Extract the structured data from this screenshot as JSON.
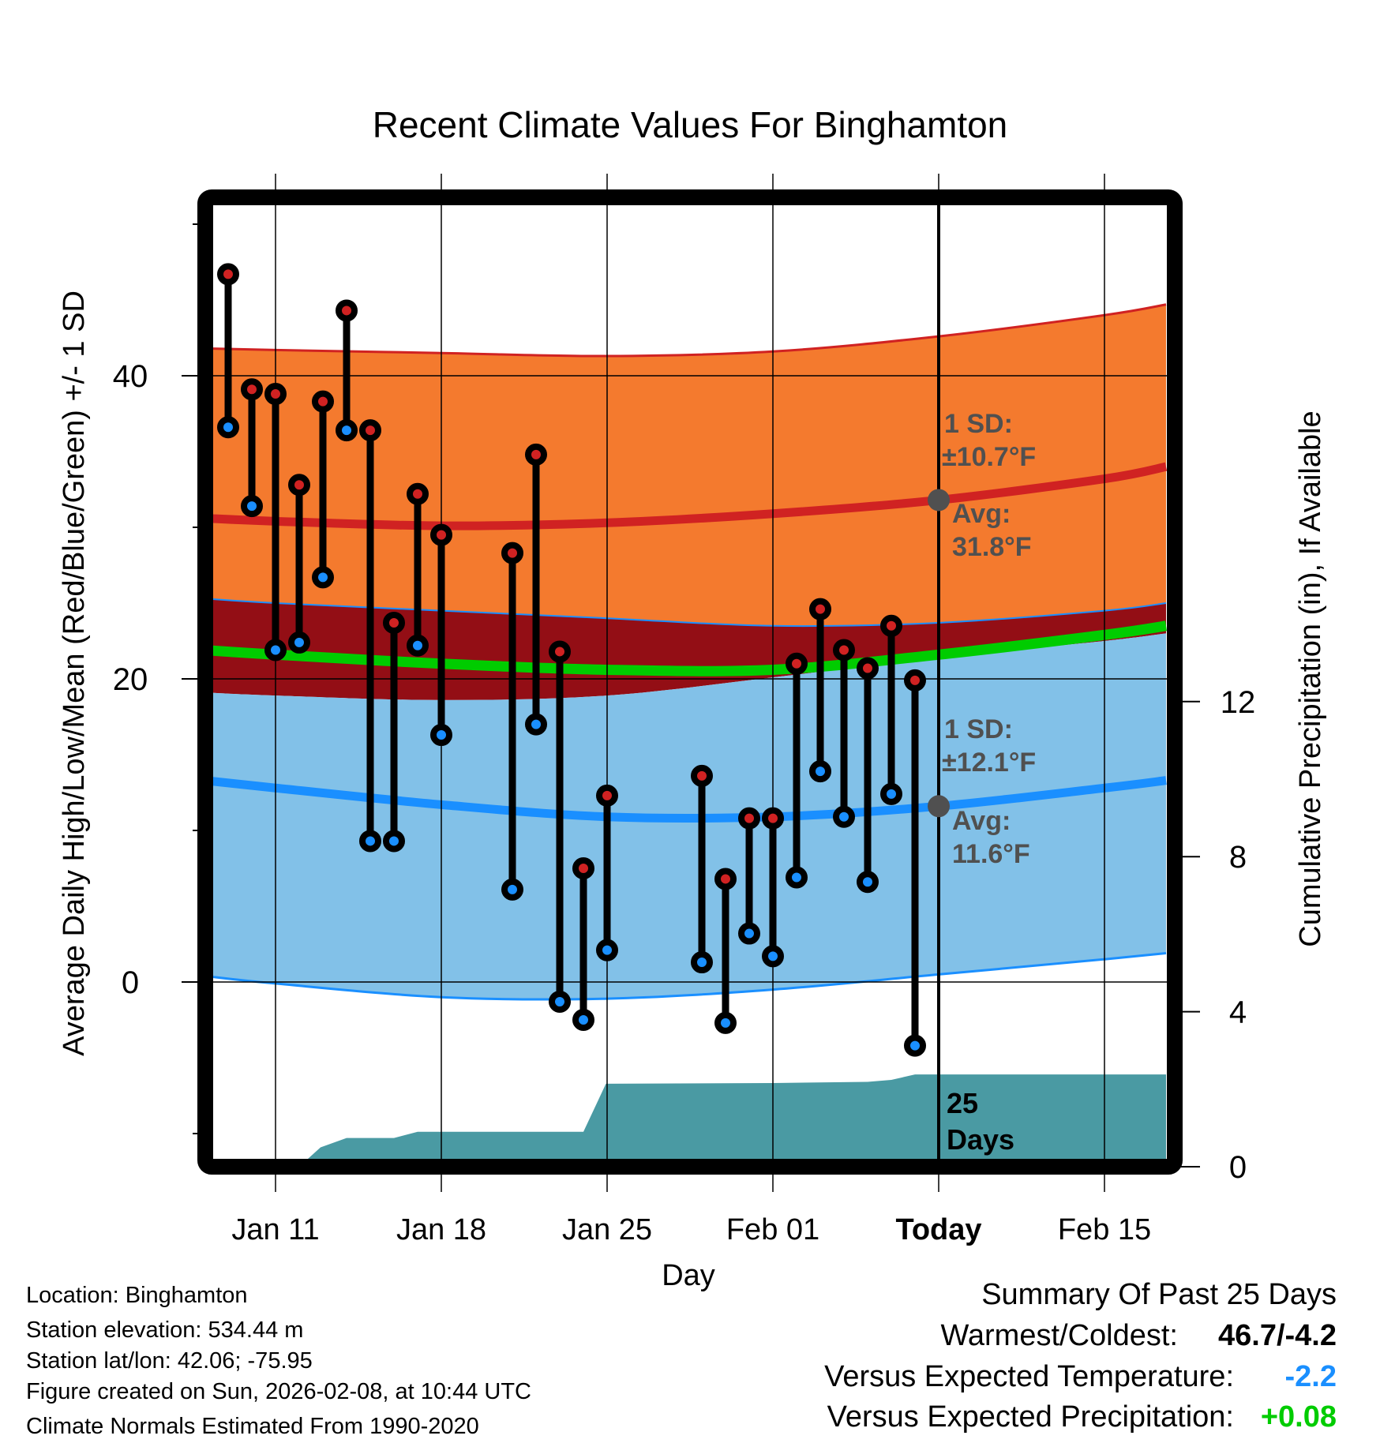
{
  "chart_data": {
    "type": "line",
    "title": "Recent Climate Values For Binghamton",
    "xlabel": "Day",
    "ylabel": "Average Daily High/Low/Mean (Red/Blue/Green) +/- 1 SD",
    "ylabel_right": "Cumulative Precipitation (in), If Available",
    "ylim": [
      -11.7,
      51.3
    ],
    "ylim_right": [
      0,
      16
    ],
    "xlim_days": [
      "Jan 08",
      "Feb 17"
    ],
    "grid": true,
    "y_ticks": [
      0,
      20,
      40
    ],
    "y_minor_ticks": [
      -10,
      10,
      30,
      50
    ],
    "y_right_ticks": [
      0,
      4,
      8,
      12
    ],
    "x_ticks": [
      {
        "day": 11,
        "label": "Jan 11",
        "bold": false
      },
      {
        "day": 18,
        "label": "Jan 18",
        "bold": false
      },
      {
        "day": 25,
        "label": "Jan 25",
        "bold": false
      },
      {
        "day": 32,
        "label": "Feb 01",
        "bold": false
      },
      {
        "day": 39,
        "label": "Today",
        "bold": true
      },
      {
        "day": 46,
        "label": "Feb 15",
        "bold": false
      }
    ],
    "today_day": 39,
    "observations": [
      {
        "day": 9,
        "date": "Jan 09",
        "high": 46.7,
        "low": 36.6
      },
      {
        "day": 10,
        "date": "Jan 10",
        "high": 39.1,
        "low": 31.4
      },
      {
        "day": 11,
        "date": "Jan 11",
        "high": 38.8,
        "low": 21.9
      },
      {
        "day": 12,
        "date": "Jan 12",
        "high": 32.8,
        "low": 22.4
      },
      {
        "day": 13,
        "date": "Jan 13",
        "high": 38.3,
        "low": 26.7
      },
      {
        "day": 14,
        "date": "Jan 14",
        "high": 44.3,
        "low": 36.4
      },
      {
        "day": 15,
        "date": "Jan 15",
        "high": 36.4,
        "low": 9.3
      },
      {
        "day": 16,
        "date": "Jan 16",
        "high": 23.7,
        "low": 9.3
      },
      {
        "day": 17,
        "date": "Jan 17",
        "high": 32.2,
        "low": 22.2
      },
      {
        "day": 18,
        "date": "Jan 18",
        "high": 29.5,
        "low": 16.3
      },
      {
        "day": 21,
        "date": "Jan 21",
        "high": 28.3,
        "low": 6.1
      },
      {
        "day": 22,
        "date": "Jan 22",
        "high": 34.8,
        "low": 17.0
      },
      {
        "day": 23,
        "date": "Jan 23",
        "high": 21.8,
        "low": -1.3
      },
      {
        "day": 24,
        "date": "Jan 24",
        "high": 7.5,
        "low": -2.5
      },
      {
        "day": 25,
        "date": "Jan 25",
        "high": 12.3,
        "low": 2.1
      },
      {
        "day": 29,
        "date": "Jan 29",
        "high": 13.6,
        "low": 1.3
      },
      {
        "day": 30,
        "date": "Jan 30",
        "high": 6.8,
        "low": -2.7
      },
      {
        "day": 31,
        "date": "Jan 31",
        "high": 10.8,
        "low": 3.2
      },
      {
        "day": 32,
        "date": "Feb 01",
        "high": 10.8,
        "low": 1.7
      },
      {
        "day": 33,
        "date": "Feb 02",
        "high": 21.0,
        "low": 6.9
      },
      {
        "day": 34,
        "date": "Feb 03",
        "high": 24.6,
        "low": 13.9
      },
      {
        "day": 35,
        "date": "Feb 04",
        "high": 21.9,
        "low": 10.9
      },
      {
        "day": 36,
        "date": "Feb 05",
        "high": 20.7,
        "low": 6.6
      },
      {
        "day": 37,
        "date": "Feb 06",
        "high": 23.5,
        "low": 12.4
      },
      {
        "day": 38,
        "date": "Feb 07",
        "high": 19.9,
        "low": -4.2
      }
    ],
    "normals": {
      "days": [
        8,
        11,
        18,
        25,
        32,
        39,
        46,
        48.6
      ],
      "high_upper_sd": [
        41.8,
        41.7,
        41.5,
        41.3,
        41.6,
        42.6,
        44.0,
        44.7
      ],
      "high_avg": [
        30.6,
        30.4,
        30.1,
        30.3,
        30.9,
        31.8,
        33.2,
        34.0
      ],
      "high_lower_sd": [
        25.3,
        25.0,
        24.5,
        24.0,
        23.5,
        23.7,
        24.5,
        25.0
      ],
      "mean_avg": [
        21.9,
        21.6,
        21.0,
        20.6,
        20.6,
        21.6,
        22.9,
        23.5
      ],
      "low_upper_sd": [
        19.1,
        18.9,
        18.6,
        18.9,
        20.1,
        21.4,
        22.5,
        23.0
      ],
      "low_avg": [
        13.3,
        12.8,
        11.7,
        10.9,
        10.9,
        11.6,
        12.8,
        13.3
      ],
      "low_lower_sd": [
        0.4,
        -0.1,
        -1.0,
        -1.1,
        -0.5,
        0.5,
        1.5,
        1.9
      ]
    },
    "precipitation_cumulative": {
      "days": [
        8,
        12,
        12.9,
        14,
        16,
        17,
        24,
        24.95,
        32,
        36,
        37,
        38,
        48.6
      ],
      "values": [
        0,
        0,
        0.5,
        0.74,
        0.74,
        0.9,
        0.9,
        2.14,
        2.16,
        2.19,
        2.24,
        2.38,
        2.38
      ]
    },
    "annotations": {
      "high_sd_line1": "1 SD:",
      "high_sd_line2": "±10.7°F",
      "high_avg_line1": "Avg:",
      "high_avg_line2": "31.8°F",
      "high_avg_value": 31.8,
      "low_sd_line1": "1 SD:",
      "low_sd_line2": "±12.1°F",
      "low_avg_line1": "Avg:",
      "low_avg_line2": "11.6°F",
      "low_avg_value": 11.6,
      "days_line1": "25",
      "days_line2": "Days"
    },
    "colors": {
      "high_band": "#f47a2e",
      "high_line": "#d02222",
      "overlap_band": "#930e15",
      "mean_line": "#00cc00",
      "low_band": "#82c1e8",
      "low_line": "#1a8fff",
      "precip_fill": "#4a9aa3",
      "marker_high": "#d02222",
      "marker_low": "#1a8fff",
      "avg_marker": "#505050"
    }
  },
  "footer": {
    "location": "Location: Binghamton",
    "elevation": "Station elevation: 534.44 m",
    "latlon": "Station lat/lon: 42.06; -75.95",
    "created": "Figure created on Sun, 2026-02-08, at 10:44 UTC",
    "normals": "Climate Normals Estimated From 1990-2020"
  },
  "summary": {
    "heading": "Summary Of Past 25 Days",
    "warmest_coldest_label": "Warmest/Coldest:",
    "warmest_coldest_value": "46.7/-4.2",
    "temp_label": "Versus Expected Temperature:",
    "temp_value": "-2.2",
    "temp_color": "#1a8fff",
    "precip_label": "Versus Expected Precipitation:",
    "precip_value": "+0.08",
    "precip_color": "#00cc00"
  }
}
